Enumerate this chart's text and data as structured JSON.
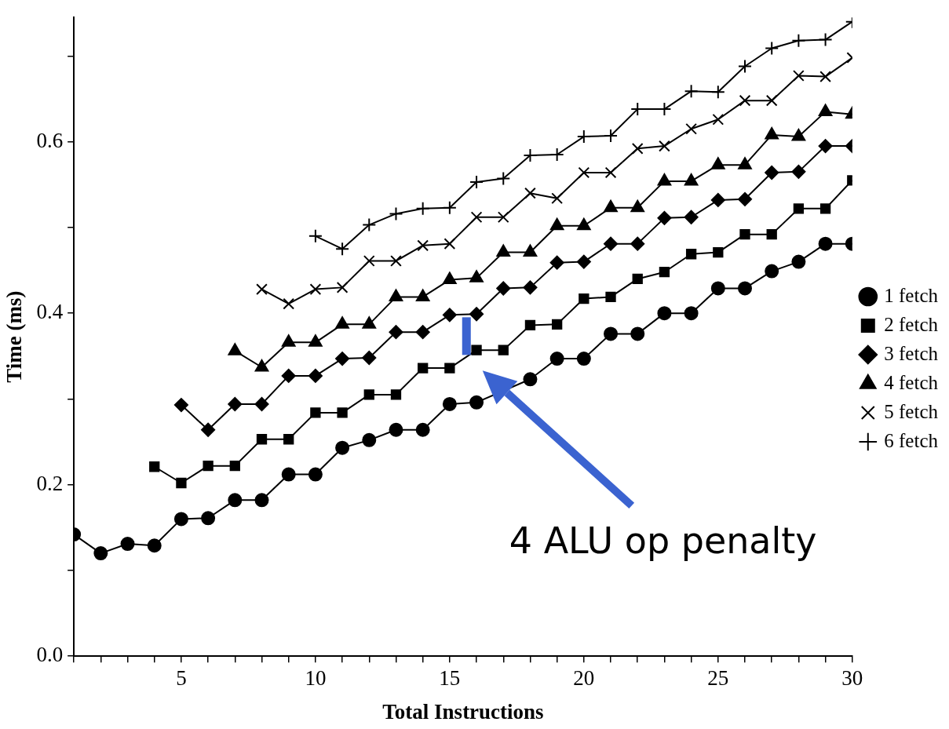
{
  "chart_data": {
    "type": "line",
    "xlabel": "Total Instructions",
    "ylabel": "Time (ms)",
    "x": [
      1,
      2,
      3,
      4,
      5,
      6,
      7,
      8,
      9,
      10,
      11,
      12,
      13,
      14,
      15,
      16,
      17,
      18,
      19,
      20,
      21,
      22,
      23,
      24,
      25,
      26,
      27,
      28,
      29,
      30
    ],
    "series": [
      {
        "name": "1 fetch",
        "color": "#000000",
        "marker": "circle",
        "values": [
          0.142,
          0.12,
          0.131,
          0.129,
          0.16,
          0.161,
          0.182,
          0.182,
          0.212,
          0.212,
          0.243,
          0.252,
          0.264,
          0.264,
          0.294,
          0.296,
          null,
          0.323,
          0.347,
          0.347,
          0.376,
          0.376,
          0.4,
          0.4,
          0.429,
          0.429,
          0.449,
          0.46,
          0.481,
          0.481
        ]
      },
      {
        "name": "2 fetch",
        "color": "#000000",
        "marker": "square",
        "values": [
          null,
          null,
          null,
          0.221,
          0.202,
          0.222,
          0.222,
          0.253,
          0.253,
          0.284,
          0.284,
          0.305,
          0.305,
          0.336,
          0.336,
          0.357,
          0.357,
          0.386,
          0.387,
          0.417,
          0.419,
          0.44,
          0.448,
          0.469,
          0.471,
          0.492,
          0.492,
          0.522,
          0.522,
          0.555
        ]
      },
      {
        "name": "3 fetch",
        "color": "#000000",
        "marker": "diamond",
        "values": [
          null,
          null,
          null,
          null,
          0.293,
          0.264,
          0.294,
          0.294,
          0.327,
          0.327,
          0.347,
          0.348,
          0.378,
          0.378,
          0.398,
          0.399,
          0.429,
          0.43,
          0.459,
          0.46,
          0.481,
          0.481,
          0.511,
          0.512,
          0.532,
          0.533,
          0.564,
          0.565,
          0.595,
          0.595
        ]
      },
      {
        "name": "4 fetch",
        "color": "#000000",
        "marker": "triangle",
        "values": [
          null,
          null,
          null,
          null,
          null,
          null,
          0.356,
          0.337,
          0.366,
          0.366,
          0.387,
          0.387,
          0.419,
          0.419,
          0.439,
          0.441,
          0.471,
          0.471,
          0.502,
          0.502,
          0.523,
          0.523,
          0.554,
          0.554,
          0.573,
          0.573,
          0.608,
          0.606,
          0.635,
          0.632
        ]
      },
      {
        "name": "5 fetch",
        "color": "#000000",
        "marker": "cross",
        "values": [
          null,
          null,
          null,
          null,
          null,
          null,
          null,
          0.428,
          0.411,
          0.428,
          0.43,
          0.461,
          0.461,
          0.479,
          0.481,
          0.512,
          0.512,
          0.54,
          0.534,
          0.564,
          0.564,
          0.592,
          0.595,
          0.615,
          0.626,
          0.648,
          0.648,
          0.677,
          0.676,
          0.698
        ]
      },
      {
        "name": "6 fetch",
        "color": "#000000",
        "marker": "plus",
        "values": [
          null,
          null,
          null,
          null,
          null,
          null,
          null,
          null,
          null,
          0.49,
          0.475,
          0.503,
          0.516,
          0.522,
          0.523,
          0.553,
          0.557,
          0.584,
          0.585,
          0.606,
          0.607,
          0.638,
          0.638,
          0.659,
          0.658,
          0.688,
          0.709,
          0.718,
          0.719,
          0.74
        ]
      }
    ],
    "xlim": [
      1,
      30
    ],
    "xticks": [
      {
        "value": 1,
        "label": null
      },
      {
        "value": 2,
        "label": null
      },
      {
        "value": 3,
        "label": null
      },
      {
        "value": 4,
        "label": null
      },
      5,
      {
        "value": 6,
        "label": null
      },
      {
        "value": 7,
        "label": null
      },
      {
        "value": 8,
        "label": null
      },
      {
        "value": 9,
        "label": null
      },
      10,
      {
        "value": 11,
        "label": null
      },
      {
        "value": 12,
        "label": null
      },
      {
        "value": 13,
        "label": null
      },
      {
        "value": 14,
        "label": null
      },
      15,
      {
        "value": 16,
        "label": null
      },
      {
        "value": 17,
        "label": null
      },
      {
        "value": 18,
        "label": null
      },
      {
        "value": 19,
        "label": null
      },
      20,
      {
        "value": 21,
        "label": null
      },
      {
        "value": 22,
        "label": null
      },
      {
        "value": 23,
        "label": null
      },
      {
        "value": 24,
        "label": null
      },
      25,
      {
        "value": 26,
        "label": null
      },
      {
        "value": 27,
        "label": null
      },
      {
        "value": 28,
        "label": null
      },
      {
        "value": 29,
        "label": null
      },
      30
    ],
    "ylim": [
      0,
      0.745
    ],
    "yticks": [
      {
        "value": 0,
        "label": "0.0"
      },
      {
        "value": 0.1,
        "label": null
      },
      0.2,
      {
        "value": 0.3,
        "label": null
      },
      0.4,
      {
        "value": 0.5,
        "label": null
      },
      0.6,
      {
        "value": 0.7,
        "label": null
      }
    ],
    "annotations": [
      "4 ALU op penalty"
    ],
    "grid": false,
    "legend": "right",
    "line_style": "solid"
  }
}
